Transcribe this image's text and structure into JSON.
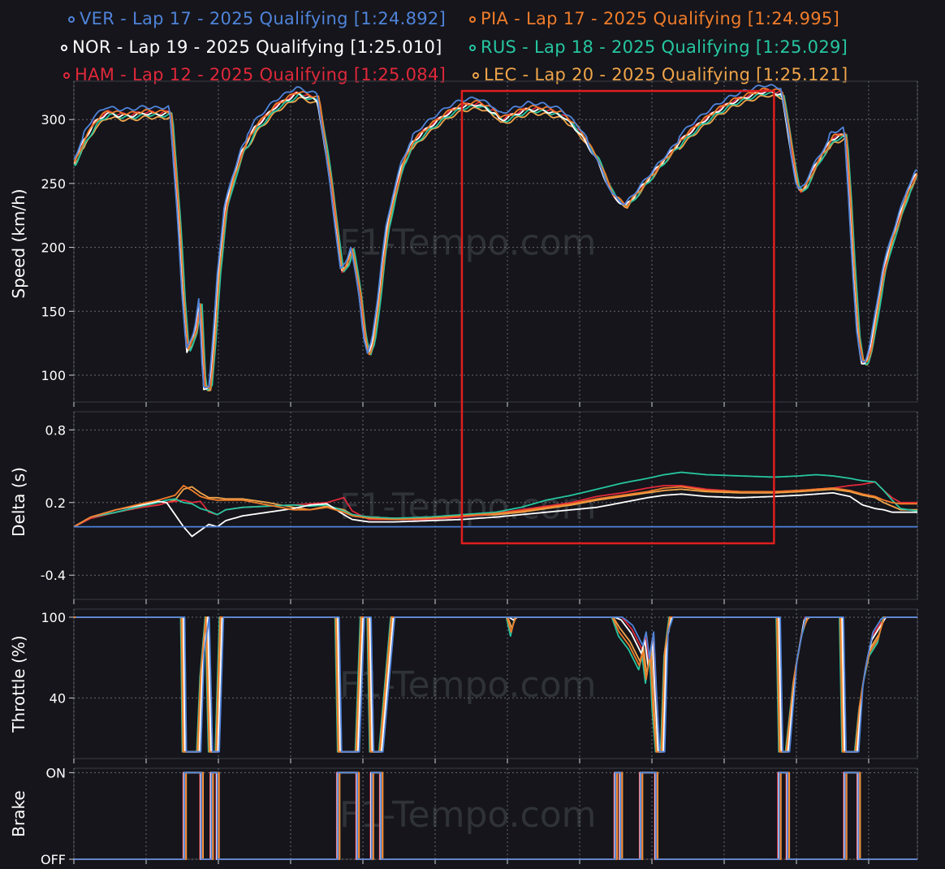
{
  "chart_data": {
    "type": "line",
    "watermark": "F1-Tempo.com",
    "legend": [
      {
        "label": "VER - Lap 17 - 2025 Qualifying [1:24.892]",
        "color": "#4f83d9"
      },
      {
        "label": "PIA - Lap 17 - 2025 Qualifying [1:24.995]",
        "color": "#f07c2a"
      },
      {
        "label": "NOR - Lap 19 - 2025 Qualifying [1:25.010]",
        "color": "#ffffff"
      },
      {
        "label": "RUS - Lap 18 - 2025 Qualifying [1:25.029]",
        "color": "#26c6a0"
      },
      {
        "label": "HAM - Lap 12 - 2025 Qualifying [1:25.084]",
        "color": "#e0283a"
      },
      {
        "label": "LEC - Lap 20 - 2025 Qualifying [1:25.121]",
        "color": "#f0a44a"
      }
    ],
    "x_range": [
      0,
      1000
    ],
    "highlight_box": {
      "x": [
        460,
        830
      ],
      "color": "#e01e1e"
    },
    "panels": [
      {
        "id": "speed",
        "ylabel": "Speed (km/h)",
        "ticks": [
          {
            "v": 300,
            "label": "300"
          },
          {
            "v": 250,
            "label": "250"
          },
          {
            "v": 200,
            "label": "200"
          },
          {
            "v": 150,
            "label": "150"
          },
          {
            "v": 100,
            "label": "100"
          }
        ],
        "ylim": [
          79,
          330
        ]
      },
      {
        "id": "delta",
        "ylabel": "Delta (s)",
        "ticks": [
          {
            "v": 0.8,
            "label": "0.8"
          },
          {
            "v": 0.2,
            "label": "0.2"
          },
          {
            "v": -0.4,
            "label": "-0.4"
          }
        ],
        "ylim": [
          -0.6,
          0.95
        ]
      },
      {
        "id": "throttle",
        "ylabel": "Throttle (%)",
        "ticks": [
          {
            "v": 100,
            "label": "100"
          },
          {
            "v": 40,
            "label": "40"
          }
        ],
        "ylim": [
          -5,
          106
        ]
      },
      {
        "id": "brake",
        "ylabel": "Brake",
        "ticks": [
          {
            "v": 1,
            "label": "ON"
          },
          {
            "v": 0,
            "label": "OFF"
          }
        ],
        "ylim": [
          0,
          1.05
        ]
      }
    ],
    "series": {
      "speed": {
        "x": [
          0,
          10,
          25,
          40,
          55,
          70,
          85,
          100,
          115,
          125,
          130,
          135,
          145,
          150,
          155,
          162,
          167,
          172,
          180,
          190,
          200,
          215,
          240,
          265,
          290,
          305,
          318,
          325,
          330,
          340,
          345,
          350,
          355,
          362,
          367,
          372,
          380,
          390,
          400,
          415,
          430,
          445,
          460,
          480,
          500,
          505,
          510,
          520,
          540,
          560,
          580,
          600,
          620,
          640,
          655,
          665,
          675,
          680,
          690,
          700,
          720,
          740,
          760,
          780,
          800,
          820,
          840,
          850,
          858,
          862,
          868,
          875,
          885,
          900,
          915,
          920,
          925,
          930,
          935,
          940,
          945,
          950,
          955,
          960,
          970,
          980,
          990,
          1000
        ],
        "base": [
          265,
          280,
          297,
          305,
          303,
          303,
          305,
          304,
          305,
          220,
          160,
          118,
          135,
          158,
          90,
          90,
          130,
          180,
          230,
          255,
          275,
          293,
          310,
          320,
          315,
          250,
          180,
          188,
          200,
          160,
          130,
          115,
          125,
          160,
          190,
          215,
          240,
          265,
          280,
          290,
          298,
          305,
          310,
          312,
          305,
          300,
          300,
          303,
          308,
          307,
          303,
          290,
          270,
          240,
          232,
          240,
          248,
          252,
          260,
          268,
          283,
          295,
          305,
          313,
          318,
          322,
          320,
          280,
          248,
          243,
          248,
          258,
          270,
          285,
          288,
          240,
          180,
          130,
          110,
          110,
          120,
          140,
          160,
          180,
          205,
          225,
          245,
          258
        ],
        "offsets": {
          "VER": [
            -3,
            5
          ],
          "PIA": [
            1,
            2
          ],
          "NOR": [
            -2,
            0
          ],
          "RUS": [
            3,
            -1
          ],
          "HAM": [
            -1,
            1
          ],
          "LEC": [
            2,
            -3
          ]
        }
      },
      "delta": {
        "x": [
          0,
          20,
          50,
          80,
          100,
          110,
          120,
          130,
          140,
          150,
          160,
          170,
          180,
          200,
          230,
          260,
          280,
          300,
          320,
          330,
          350,
          380,
          420,
          460,
          500,
          530,
          560,
          590,
          620,
          650,
          680,
          700,
          720,
          750,
          790,
          830,
          860,
          880,
          900,
          920,
          935,
          950,
          960,
          970,
          980,
          990,
          1000
        ],
        "VER": [
          0,
          0,
          0,
          0,
          0,
          0,
          0,
          0,
          0,
          0,
          0,
          0,
          0,
          0,
          0,
          0,
          0,
          0,
          0,
          0,
          0,
          0,
          0,
          0,
          0,
          0,
          0,
          0,
          0,
          0,
          0,
          0,
          0,
          0,
          0,
          0,
          0,
          0,
          0,
          0,
          0,
          0,
          0,
          0,
          0,
          0,
          0
        ],
        "PIA": [
          0,
          0.08,
          0.14,
          0.19,
          0.22,
          0.24,
          0.26,
          0.34,
          0.3,
          0.25,
          0.23,
          0.22,
          0.22,
          0.22,
          0.18,
          0.14,
          0.14,
          0.16,
          0.12,
          0.09,
          0.07,
          0.06,
          0.07,
          0.09,
          0.11,
          0.13,
          0.16,
          0.19,
          0.23,
          0.26,
          0.29,
          0.32,
          0.33,
          0.3,
          0.29,
          0.29,
          0.3,
          0.31,
          0.32,
          0.3,
          0.27,
          0.25,
          0.22,
          0.2,
          0.19,
          0.19,
          0.19
        ],
        "NOR": [
          0,
          0.08,
          0.14,
          0.18,
          0.21,
          0.2,
          0.1,
          0.0,
          -0.08,
          -0.03,
          0.02,
          0.0,
          0.05,
          0.09,
          0.12,
          0.15,
          0.18,
          0.19,
          0.1,
          0.06,
          0.04,
          0.04,
          0.05,
          0.06,
          0.08,
          0.1,
          0.12,
          0.14,
          0.16,
          0.2,
          0.24,
          0.26,
          0.27,
          0.25,
          0.24,
          0.25,
          0.26,
          0.27,
          0.28,
          0.25,
          0.18,
          0.15,
          0.14,
          0.12,
          0.12,
          0.12,
          0.12
        ],
        "RUS": [
          0,
          0.08,
          0.12,
          0.17,
          0.2,
          0.22,
          0.23,
          0.2,
          0.19,
          0.15,
          0.13,
          0.1,
          0.14,
          0.16,
          0.17,
          0.18,
          0.17,
          0.18,
          0.13,
          0.1,
          0.08,
          0.07,
          0.08,
          0.1,
          0.12,
          0.16,
          0.22,
          0.26,
          0.31,
          0.36,
          0.4,
          0.43,
          0.45,
          0.43,
          0.42,
          0.41,
          0.42,
          0.43,
          0.42,
          0.4,
          0.38,
          0.37,
          0.3,
          0.22,
          0.15,
          0.14,
          0.13
        ],
        "HAM": [
          0,
          0.07,
          0.12,
          0.16,
          0.18,
          0.2,
          0.21,
          0.22,
          0.2,
          0.21,
          0.12,
          0.1,
          0.14,
          0.16,
          0.17,
          0.18,
          0.19,
          0.2,
          0.24,
          0.13,
          0.06,
          0.06,
          0.06,
          0.08,
          0.11,
          0.14,
          0.17,
          0.2,
          0.25,
          0.28,
          0.32,
          0.34,
          0.34,
          0.31,
          0.29,
          0.29,
          0.3,
          0.31,
          0.32,
          0.34,
          0.35,
          0.37,
          0.3,
          0.24,
          0.2,
          0.2,
          0.2
        ],
        "LEC": [
          0,
          0.07,
          0.12,
          0.16,
          0.18,
          0.2,
          0.22,
          0.31,
          0.33,
          0.28,
          0.24,
          0.24,
          0.23,
          0.23,
          0.2,
          0.16,
          0.14,
          0.17,
          0.14,
          0.1,
          0.08,
          0.07,
          0.07,
          0.09,
          0.1,
          0.12,
          0.15,
          0.18,
          0.22,
          0.25,
          0.28,
          0.3,
          0.31,
          0.29,
          0.28,
          0.28,
          0.29,
          0.3,
          0.31,
          0.29,
          0.26,
          0.24,
          0.2,
          0.17,
          0.14,
          0.14,
          0.14
        ]
      },
      "throttle": {
        "segments": [
          [
            0,
            100
          ],
          [
            129,
            100
          ],
          [
            131,
            0
          ],
          [
            148,
            0
          ],
          [
            152,
            65
          ],
          [
            158,
            100
          ],
          [
            162,
            0
          ],
          [
            170,
            0
          ],
          [
            175,
            100
          ],
          [
            312,
            100
          ],
          [
            315,
            0
          ],
          [
            336,
            0
          ],
          [
            342,
            100
          ],
          [
            350,
            100
          ],
          [
            353,
            0
          ],
          [
            364,
            0
          ],
          [
            378,
            100
          ],
          [
            515,
            100
          ],
          [
            520,
            95
          ],
          [
            525,
            100
          ],
          [
            640,
            100
          ],
          [
            648,
            95
          ],
          [
            660,
            85
          ],
          [
            672,
            70
          ],
          [
            676,
            80
          ],
          [
            680,
            60
          ],
          [
            685,
            80
          ],
          [
            688,
            40
          ],
          [
            692,
            0
          ],
          [
            698,
            0
          ],
          [
            702,
            80
          ],
          [
            708,
            100
          ],
          [
            835,
            100
          ],
          [
            838,
            0
          ],
          [
            846,
            0
          ],
          [
            855,
            60
          ],
          [
            865,
            95
          ],
          [
            872,
            100
          ],
          [
            910,
            100
          ],
          [
            913,
            0
          ],
          [
            928,
            0
          ],
          [
            933,
            40
          ],
          [
            938,
            60
          ],
          [
            945,
            80
          ],
          [
            955,
            90
          ],
          [
            962,
            100
          ],
          [
            1000,
            100
          ]
        ],
        "jitter": {
          "VER": 3,
          "PIA": -2,
          "NOR": 1,
          "RUS": -3,
          "HAM": 2,
          "LEC": -1
        }
      },
      "brake": {
        "segments": [
          [
            0,
            0
          ],
          [
            131,
            0
          ],
          [
            131,
            1
          ],
          [
            151,
            1
          ],
          [
            151,
            0
          ],
          [
            163,
            0
          ],
          [
            163,
            1
          ],
          [
            170,
            1
          ],
          [
            170,
            0
          ],
          [
            313,
            0
          ],
          [
            313,
            1
          ],
          [
            336,
            1
          ],
          [
            336,
            0
          ],
          [
            353,
            0
          ],
          [
            353,
            1
          ],
          [
            364,
            1
          ],
          [
            364,
            0
          ],
          [
            642,
            0
          ],
          [
            642,
            1
          ],
          [
            648,
            1
          ],
          [
            648,
            0
          ],
          [
            672,
            0
          ],
          [
            672,
            1
          ],
          [
            690,
            1
          ],
          [
            690,
            0
          ],
          [
            836,
            0
          ],
          [
            836,
            1
          ],
          [
            846,
            1
          ],
          [
            846,
            0
          ],
          [
            914,
            0
          ],
          [
            914,
            1
          ],
          [
            930,
            1
          ],
          [
            930,
            0
          ],
          [
            1000,
            0
          ]
        ],
        "jitter": {
          "VER": 0,
          "PIA": 2,
          "NOR": -1,
          "RUS": 1,
          "HAM": -2,
          "LEC": 3
        }
      }
    }
  }
}
